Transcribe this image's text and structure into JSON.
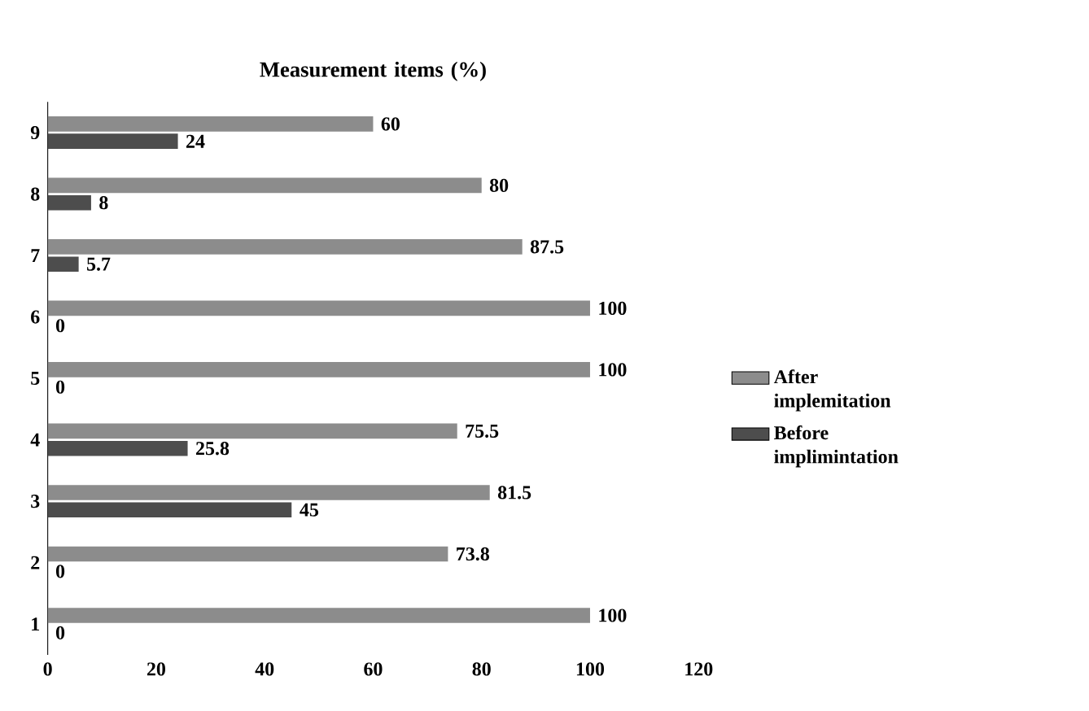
{
  "chart_data": {
    "type": "bar",
    "orientation": "horizontal",
    "title": "Measurement items (%)",
    "categories": [
      "9",
      "8",
      "7",
      "6",
      "5",
      "4",
      "3",
      "2",
      "1"
    ],
    "series": [
      {
        "name": "After implemitation",
        "color": "#8c8c8c",
        "values": [
          60,
          80,
          87.5,
          100,
          100,
          75.5,
          81.5,
          73.8,
          100
        ]
      },
      {
        "name": "Before implimintation",
        "color": "#4d4d4d",
        "values": [
          24,
          8,
          5.7,
          0,
          0,
          25.8,
          45,
          0,
          0
        ]
      }
    ],
    "xlim": [
      0,
      120
    ],
    "xticks": [
      0,
      20,
      40,
      60,
      80,
      100,
      120
    ],
    "data_labels": true,
    "legend": "right",
    "grid": false
  }
}
